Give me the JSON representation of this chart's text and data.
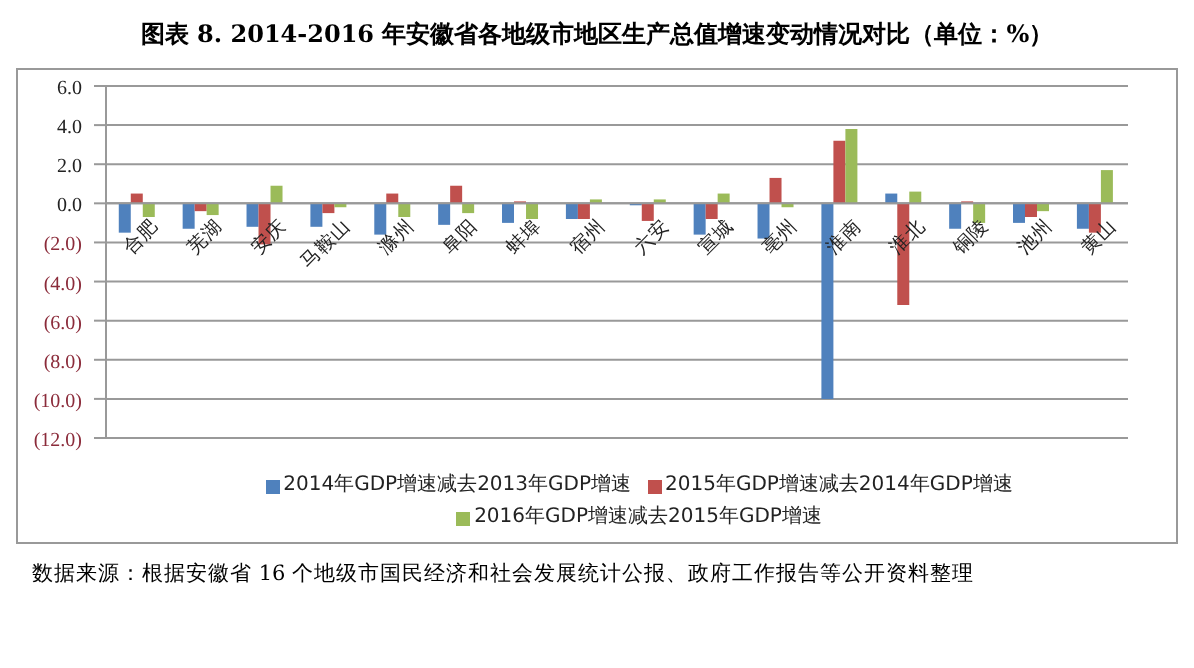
{
  "chart_data": {
    "type": "bar",
    "title": "图表 8.    2014-2016 年安徽省各地级市地区生产总值增速变动情况对比（单位：%）",
    "categories": [
      "合肥",
      "芜湖",
      "安庆",
      "马鞍山",
      "滁州",
      "阜阳",
      "蚌埠",
      "宿州",
      "六安",
      "宣城",
      "亳州",
      "淮南",
      "淮北",
      "铜陵",
      "池州",
      "黄山"
    ],
    "series": [
      {
        "name": "2014年GDP增速减去2013年GDP增速",
        "color": "#4f81bd",
        "values": [
          -1.5,
          -1.3,
          -1.2,
          -1.2,
          -1.6,
          -1.1,
          -1.0,
          -0.8,
          -0.1,
          -1.6,
          -1.8,
          -10.0,
          0.5,
          -1.3,
          -1.0,
          -1.3
        ]
      },
      {
        "name": "2015年GDP增速减去2014年GDP增速",
        "color": "#c0504d",
        "values": [
          0.5,
          -0.4,
          -2.1,
          -0.5,
          0.5,
          0.9,
          0.1,
          -0.8,
          -0.9,
          -0.8,
          1.3,
          3.2,
          -5.2,
          0.1,
          -0.7,
          -1.5
        ]
      },
      {
        "name": "2016年GDP增速减去2015年GDP增速",
        "color": "#9bbb59",
        "values": [
          -0.7,
          -0.6,
          0.9,
          -0.2,
          -0.7,
          -0.5,
          -0.8,
          0.2,
          0.2,
          0.5,
          -0.2,
          3.8,
          0.6,
          -1.0,
          -0.4,
          1.7
        ]
      }
    ],
    "ylim": [
      -12,
      6
    ],
    "yticks": [
      {
        "value": -12,
        "label": "(12.0)"
      },
      {
        "value": -10,
        "label": "(10.0)"
      },
      {
        "value": -8,
        "label": "(8.0)"
      },
      {
        "value": -6,
        "label": "(6.0)"
      },
      {
        "value": -4,
        "label": "(4.0)"
      },
      {
        "value": -2,
        "label": "(2.0)"
      },
      {
        "value": 0,
        "label": "0.0"
      },
      {
        "value": 2,
        "label": "2.0"
      },
      {
        "value": 4,
        "label": "4.0"
      },
      {
        "value": 6,
        "label": "6.0"
      }
    ],
    "grid": "y",
    "legend": "bottom",
    "annotations": [
      "数据来源：根据安徽省 16 个地级市国民经济和社会发展统计公报、政府工作报告等公开资料整理"
    ]
  }
}
